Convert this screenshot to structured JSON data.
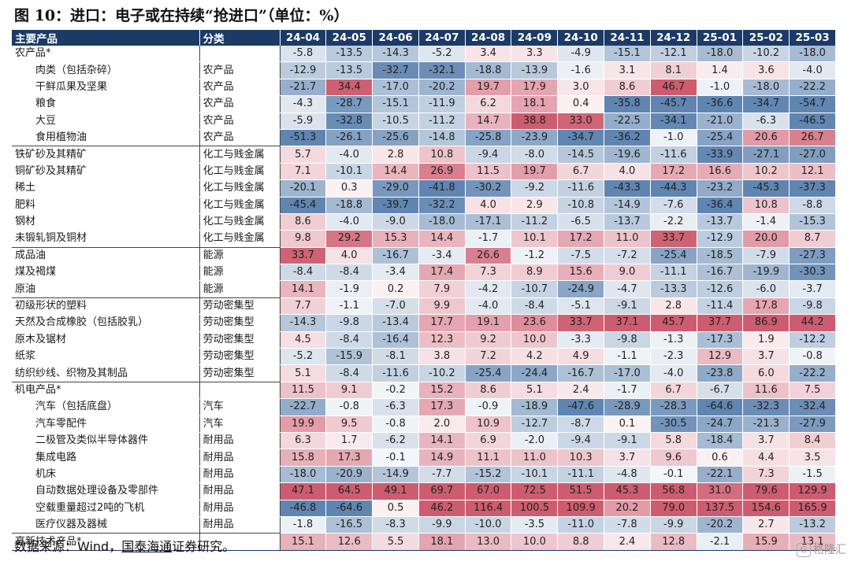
{
  "title": "图 10：进口：电子或在持续“抢进口”（单位：%）",
  "source": {
    "prefix": "数据来源：Wind，",
    "org": "国泰海通",
    "suffix": "证券研究。"
  },
  "watermark": {
    "badge": "G",
    "text": "格隆汇"
  },
  "colors": {
    "header_bg": "#1b3a66",
    "positive": "#c94a60",
    "negative": "#4e77a8"
  },
  "chart_data": {
    "type": "table",
    "columns": [
      "主要产品",
      "分类",
      "24-04",
      "24-05",
      "24-06",
      "24-07",
      "24-08",
      "24-09",
      "24-10",
      "24-11",
      "24-12",
      "25-01",
      "25-02",
      "25-03"
    ],
    "rows": [
      {
        "name": "农产品*",
        "cat": "",
        "indent": false,
        "values": [
          -5.8,
          -13.5,
          -14.3,
          -5.2,
          3.4,
          3.3,
          -4.9,
          -15.1,
          -12.1,
          -18.0,
          -10.2,
          -18.0
        ]
      },
      {
        "name": "肉类（包括杂碎）",
        "cat": "农产品",
        "indent": true,
        "values": [
          -12.9,
          -13.5,
          -32.7,
          -32.1,
          -18.8,
          -13.9,
          -1.6,
          3.1,
          8.1,
          1.4,
          3.6,
          -4.0
        ]
      },
      {
        "name": "干鲜瓜果及坚果",
        "cat": "农产品",
        "indent": true,
        "values": [
          -21.7,
          34.4,
          -17.0,
          -20.2,
          19.7,
          17.9,
          3.0,
          8.6,
          46.7,
          -1.0,
          -18.0,
          -22.2
        ]
      },
      {
        "name": "粮食",
        "cat": "农产品",
        "indent": true,
        "values": [
          -4.3,
          -28.7,
          -15.1,
          -11.9,
          6.2,
          18.1,
          0.4,
          -35.8,
          -45.7,
          -36.6,
          -34.7,
          -54.7
        ]
      },
      {
        "name": "大豆",
        "cat": "农产品",
        "indent": true,
        "values": [
          -5.9,
          -32.8,
          -10.5,
          -11.2,
          14.7,
          38.8,
          33.0,
          -22.5,
          -34.1,
          -21.0,
          -6.3,
          -46.5
        ]
      },
      {
        "name": "食用植物油",
        "cat": "农产品",
        "indent": true,
        "grp_end": true,
        "values": [
          -51.3,
          -26.1,
          -25.6,
          -14.8,
          -25.8,
          -23.9,
          -34.7,
          -36.2,
          -1.0,
          -25.4,
          20.6,
          26.7
        ]
      },
      {
        "name": "铁矿砂及其精矿",
        "cat": "化工与贱金属",
        "indent": false,
        "values": [
          5.7,
          -4.0,
          2.8,
          10.8,
          -9.4,
          -8.0,
          -14.5,
          -19.6,
          -11.6,
          -33.9,
          -27.1,
          -27.0
        ]
      },
      {
        "name": "铜矿砂及其精矿",
        "cat": "化工与贱金属",
        "indent": false,
        "values": [
          7.1,
          -10.1,
          14.4,
          26.9,
          11.5,
          19.7,
          6.7,
          4.0,
          17.2,
          16.6,
          10.2,
          12.1
        ]
      },
      {
        "name": "稀土",
        "cat": "化工与贱金属",
        "indent": false,
        "values": [
          -20.1,
          0.3,
          -29.0,
          -41.8,
          -30.2,
          -9.2,
          -11.6,
          -43.3,
          -44.3,
          -23.2,
          -45.3,
          -37.3
        ]
      },
      {
        "name": "肥料",
        "cat": "化工与贱金属",
        "indent": false,
        "values": [
          -45.4,
          -18.8,
          -39.7,
          -32.2,
          4.0,
          2.9,
          -10.8,
          -14.9,
          -7.6,
          -36.4,
          10.8,
          -8.8
        ]
      },
      {
        "name": "钢材",
        "cat": "化工与贱金属",
        "indent": false,
        "values": [
          8.6,
          -4.0,
          -9.0,
          -18.0,
          -17.1,
          -11.2,
          -6.5,
          -13.7,
          -2.2,
          -13.7,
          -1.4,
          -15.3
        ]
      },
      {
        "name": "未锻轧铜及铜材",
        "cat": "化工与贱金属",
        "indent": false,
        "grp_end": true,
        "values": [
          9.8,
          29.2,
          15.3,
          14.4,
          -1.7,
          10.1,
          17.2,
          11.0,
          33.7,
          -12.9,
          20.0,
          8.7
        ]
      },
      {
        "name": "成品油",
        "cat": "能源",
        "indent": false,
        "values": [
          33.7,
          4.0,
          -16.7,
          -3.4,
          26.6,
          -1.2,
          -7.5,
          -7.2,
          -25.4,
          -18.5,
          -7.9,
          -27.3
        ]
      },
      {
        "name": "煤及褐煤",
        "cat": "能源",
        "indent": false,
        "values": [
          -8.4,
          -8.4,
          -3.4,
          17.4,
          7.3,
          8.9,
          15.6,
          9.0,
          -11.1,
          -16.7,
          -19.9,
          -30.3
        ]
      },
      {
        "name": "原油",
        "cat": "能源",
        "indent": false,
        "grp_end": true,
        "values": [
          14.1,
          -1.9,
          0.2,
          7.9,
          -4.2,
          -10.7,
          -24.9,
          -4.7,
          -13.3,
          -12.6,
          -6.0,
          -3.7
        ]
      },
      {
        "name": "初级形状的塑料",
        "cat": "劳动密集型",
        "indent": false,
        "values": [
          7.7,
          -1.1,
          -7.0,
          9.9,
          -4.0,
          -8.4,
          -5.1,
          -9.1,
          2.8,
          -11.4,
          17.8,
          -9.8
        ]
      },
      {
        "name": "天然及合成橡胶（包括胶乳）",
        "cat": "劳动密集型",
        "indent": false,
        "values": [
          -14.3,
          -9.8,
          -13.4,
          17.7,
          19.1,
          23.6,
          33.7,
          37.1,
          45.7,
          37.7,
          86.9,
          44.2
        ]
      },
      {
        "name": "原木及锯材",
        "cat": "劳动密集型",
        "indent": false,
        "values": [
          4.5,
          -8.4,
          -16.4,
          12.3,
          9.2,
          10.0,
          -3.3,
          -9.8,
          -1.3,
          -17.3,
          1.9,
          -12.2
        ]
      },
      {
        "name": "纸浆",
        "cat": "劳动密集型",
        "indent": false,
        "values": [
          -5.2,
          -15.9,
          -8.1,
          3.8,
          7.2,
          4.2,
          4.9,
          -1.1,
          -2.3,
          12.9,
          3.7,
          -0.8
        ]
      },
      {
        "name": "纺织纱线、织物及其制品",
        "cat": "劳动密集型",
        "indent": false,
        "grp_end": true,
        "values": [
          5.1,
          -8.4,
          -11.6,
          -10.2,
          -25.4,
          -24.4,
          -16.7,
          -17.0,
          -4.0,
          -23.8,
          6.0,
          -22.2
        ]
      },
      {
        "name": "机电产品*",
        "cat": "",
        "indent": false,
        "values": [
          11.5,
          9.1,
          -0.2,
          15.2,
          8.6,
          5.1,
          2.4,
          -1.7,
          6.7,
          -6.7,
          11.6,
          7.5
        ]
      },
      {
        "name": "汽车（包括底盘）",
        "cat": "汽车",
        "indent": true,
        "values": [
          -22.7,
          -0.8,
          -6.3,
          17.3,
          -0.9,
          -18.9,
          -47.6,
          -28.9,
          -28.3,
          -64.6,
          -32.3,
          -32.4
        ]
      },
      {
        "name": "汽车零配件",
        "cat": "汽车",
        "indent": true,
        "values": [
          19.9,
          9.5,
          -0.8,
          2.0,
          10.9,
          -12.7,
          -8.7,
          0.1,
          -30.5,
          -24.7,
          -21.3,
          -27.9
        ]
      },
      {
        "name": "二极管及类似半导体器件",
        "cat": "耐用品",
        "indent": true,
        "values": [
          6.3,
          1.7,
          -6.2,
          14.1,
          6.9,
          -2.0,
          -9.4,
          -9.1,
          5.8,
          -18.4,
          3.7,
          8.4
        ]
      },
      {
        "name": "集成电路",
        "cat": "耐用品",
        "indent": true,
        "values": [
          15.8,
          17.3,
          -0.1,
          14.9,
          11.1,
          11.0,
          10.3,
          3.7,
          9.6,
          0.6,
          4.4,
          3.5
        ]
      },
      {
        "name": "机床",
        "cat": "耐用品",
        "indent": true,
        "values": [
          -18.0,
          -20.9,
          -14.9,
          -7.7,
          -15.2,
          -10.1,
          -11.1,
          -4.8,
          -0.1,
          -22.1,
          7.3,
          -1.5
        ]
      },
      {
        "name": "自动数据处理设备及零部件",
        "cat": "耐用品",
        "indent": true,
        "values": [
          47.1,
          64.5,
          49.1,
          69.7,
          67.0,
          72.5,
          51.5,
          45.3,
          56.8,
          31.0,
          79.6,
          129.9
        ]
      },
      {
        "name": "空载重量超过2吨的飞机",
        "cat": "耐用品",
        "indent": true,
        "values": [
          -46.8,
          -64.6,
          0.5,
          46.2,
          116.4,
          100.5,
          109.9,
          20.2,
          79.0,
          137.5,
          154.6,
          165.9
        ]
      },
      {
        "name": "医疗仪器及器械",
        "cat": "耐用品",
        "indent": true,
        "grp_end": true,
        "values": [
          -1.8,
          -16.5,
          -8.3,
          -9.9,
          -10.0,
          -3.5,
          -11.0,
          -7.8,
          -9.9,
          -20.2,
          2.7,
          -13.2
        ]
      },
      {
        "name": "高新技术产品*",
        "cat": "",
        "indent": false,
        "last": true,
        "values": [
          15.1,
          12.6,
          5.5,
          18.1,
          13.0,
          10.0,
          8.8,
          2.4,
          12.8,
          -2.1,
          15.9,
          13.1
        ]
      }
    ]
  }
}
